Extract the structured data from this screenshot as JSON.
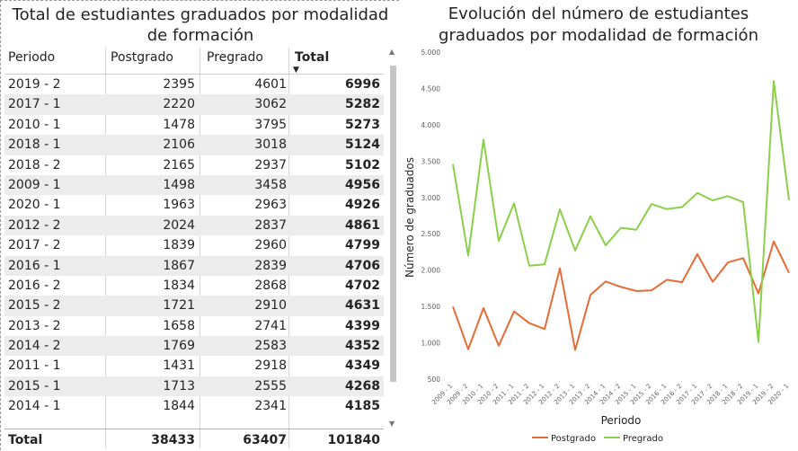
{
  "table": {
    "title_line1": "Total de estudiantes graduados por modalidad",
    "title_line2": "de formación",
    "headers": [
      "Periodo",
      "Postgrado",
      "Pregrado",
      "Total"
    ],
    "rows": [
      [
        "2019 - 2",
        "2395",
        "4601",
        "6996"
      ],
      [
        "2017 - 1",
        "2220",
        "3062",
        "5282"
      ],
      [
        "2010 - 1",
        "1478",
        "3795",
        "5273"
      ],
      [
        "2018 - 1",
        "2106",
        "3018",
        "5124"
      ],
      [
        "2018 - 2",
        "2165",
        "2937",
        "5102"
      ],
      [
        "2009 - 1",
        "1498",
        "3458",
        "4956"
      ],
      [
        "2020 - 1",
        "1963",
        "2963",
        "4926"
      ],
      [
        "2012 - 2",
        "2024",
        "2837",
        "4861"
      ],
      [
        "2017 - 2",
        "1839",
        "2960",
        "4799"
      ],
      [
        "2016 - 1",
        "1867",
        "2839",
        "4706"
      ],
      [
        "2016 - 2",
        "1834",
        "2868",
        "4702"
      ],
      [
        "2015 - 2",
        "1721",
        "2910",
        "4631"
      ],
      [
        "2013 - 2",
        "1658",
        "2741",
        "4399"
      ],
      [
        "2014 - 2",
        "1769",
        "2583",
        "4352"
      ],
      [
        "2011 - 1",
        "1431",
        "2918",
        "4349"
      ],
      [
        "2015 - 1",
        "1713",
        "2555",
        "4268"
      ],
      [
        "2014 - 1",
        "1844",
        "2341",
        "4185"
      ]
    ],
    "total": [
      "Total",
      "38433",
      "63407",
      "101840"
    ]
  },
  "chart_data": {
    "type": "line",
    "title_line1": "Evolución del número de estudiantes",
    "title_line2": "graduados por modalidad de formación",
    "xlabel": "Periodo",
    "ylabel": "Número de graduados",
    "categories": [
      "2009 - 1",
      "2009 - 2",
      "2010 - 1",
      "2010 - 2",
      "2011 - 1",
      "2011 - 2",
      "2012 - 1",
      "2012 - 2",
      "2013 - 1",
      "2013 - 2",
      "2014 - 1",
      "2014 - 2",
      "2015 - 1",
      "2015 - 2",
      "2016 - 1",
      "2016 - 2",
      "2017 - 1",
      "2017 - 2",
      "2018 - 1",
      "2018 - 2",
      "2019 - 1",
      "2019 - 2",
      "2020 - 1"
    ],
    "y_ticks": [
      "500",
      "1.000",
      "1.500",
      "2.000",
      "2.500",
      "3.000",
      "3.500",
      "4.000",
      "4.500",
      "5.000"
    ],
    "ylim": [
      500,
      5000
    ],
    "grid": false,
    "legend_position": "bottom-center",
    "series": [
      {
        "name": "Postgrado",
        "color": "#e66c37",
        "values": [
          1498,
          910,
          1478,
          960,
          1431,
          1270,
          1190,
          2024,
          900,
          1658,
          1844,
          1769,
          1713,
          1721,
          1867,
          1834,
          2220,
          1839,
          2106,
          2165,
          1680,
          2395,
          1963
        ]
      },
      {
        "name": "Pregrado",
        "color": "#8ad04a",
        "values": [
          3458,
          2200,
          3795,
          2400,
          2918,
          2060,
          2080,
          2837,
          2270,
          2741,
          2341,
          2583,
          2555,
          2910,
          2839,
          2868,
          3062,
          2960,
          3018,
          2937,
          1010,
          4601,
          2963
        ]
      }
    ]
  }
}
